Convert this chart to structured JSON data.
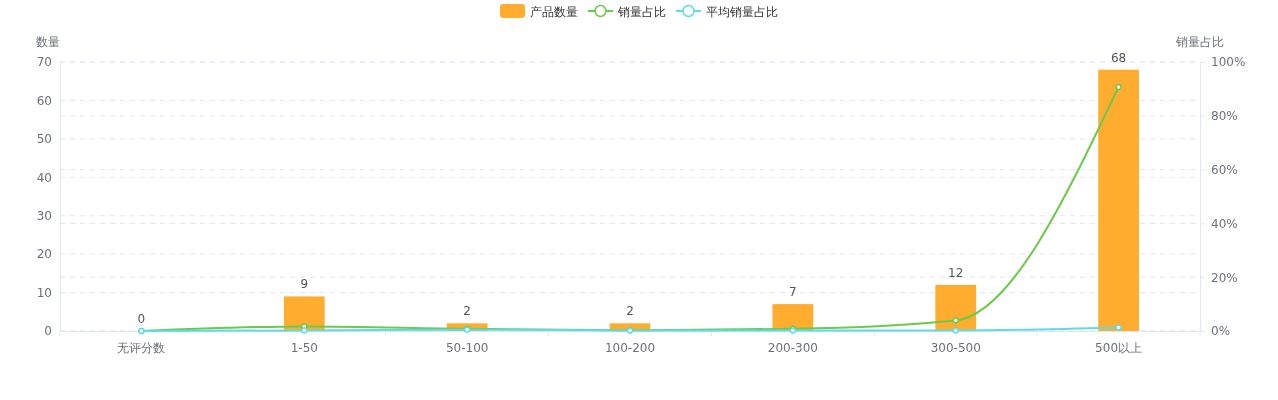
{
  "chart_data": {
    "type": "bar",
    "categories": [
      "无评分数",
      "1-50",
      "50-100",
      "100-200",
      "200-300",
      "300-500",
      "500以上"
    ],
    "series": [
      {
        "name": "产品数量",
        "color": "#ffac2f",
        "values": [
          0,
          9,
          2,
          2,
          7,
          12,
          68
        ],
        "value_labels": [
          "0",
          "9",
          "2",
          "2",
          "7",
          "12",
          "68"
        ]
      },
      {
        "name": "销量占比",
        "type": "line",
        "axis": "y2",
        "color": "#6cc94c",
        "values": [
          0,
          1.7,
          0.8,
          0.3,
          0.8,
          3.9,
          90.7
        ]
      },
      {
        "name": "平均销量占比",
        "type": "line",
        "axis": "y2",
        "color": "#5fdbe3",
        "values": [
          0,
          0.2,
          0.5,
          0.2,
          0.2,
          0.2,
          1.3
        ]
      }
    ],
    "ylabel": "数量",
    "y2label": "销量占比",
    "ylim": [
      0,
      70
    ],
    "yticks": [
      0,
      10,
      20,
      30,
      40,
      50,
      60,
      70
    ],
    "y2lim": [
      0,
      100
    ],
    "y2ticks": [
      {
        "value": 0,
        "label": "0%"
      },
      {
        "value": 20,
        "label": "20%"
      },
      {
        "value": 40,
        "label": "40%"
      },
      {
        "value": 60,
        "label": "60%"
      },
      {
        "value": 80,
        "label": "80%"
      },
      {
        "value": 100,
        "label": "100%"
      }
    ],
    "grid": true,
    "legend": "top",
    "marker": "circle",
    "line_style": "solid"
  }
}
